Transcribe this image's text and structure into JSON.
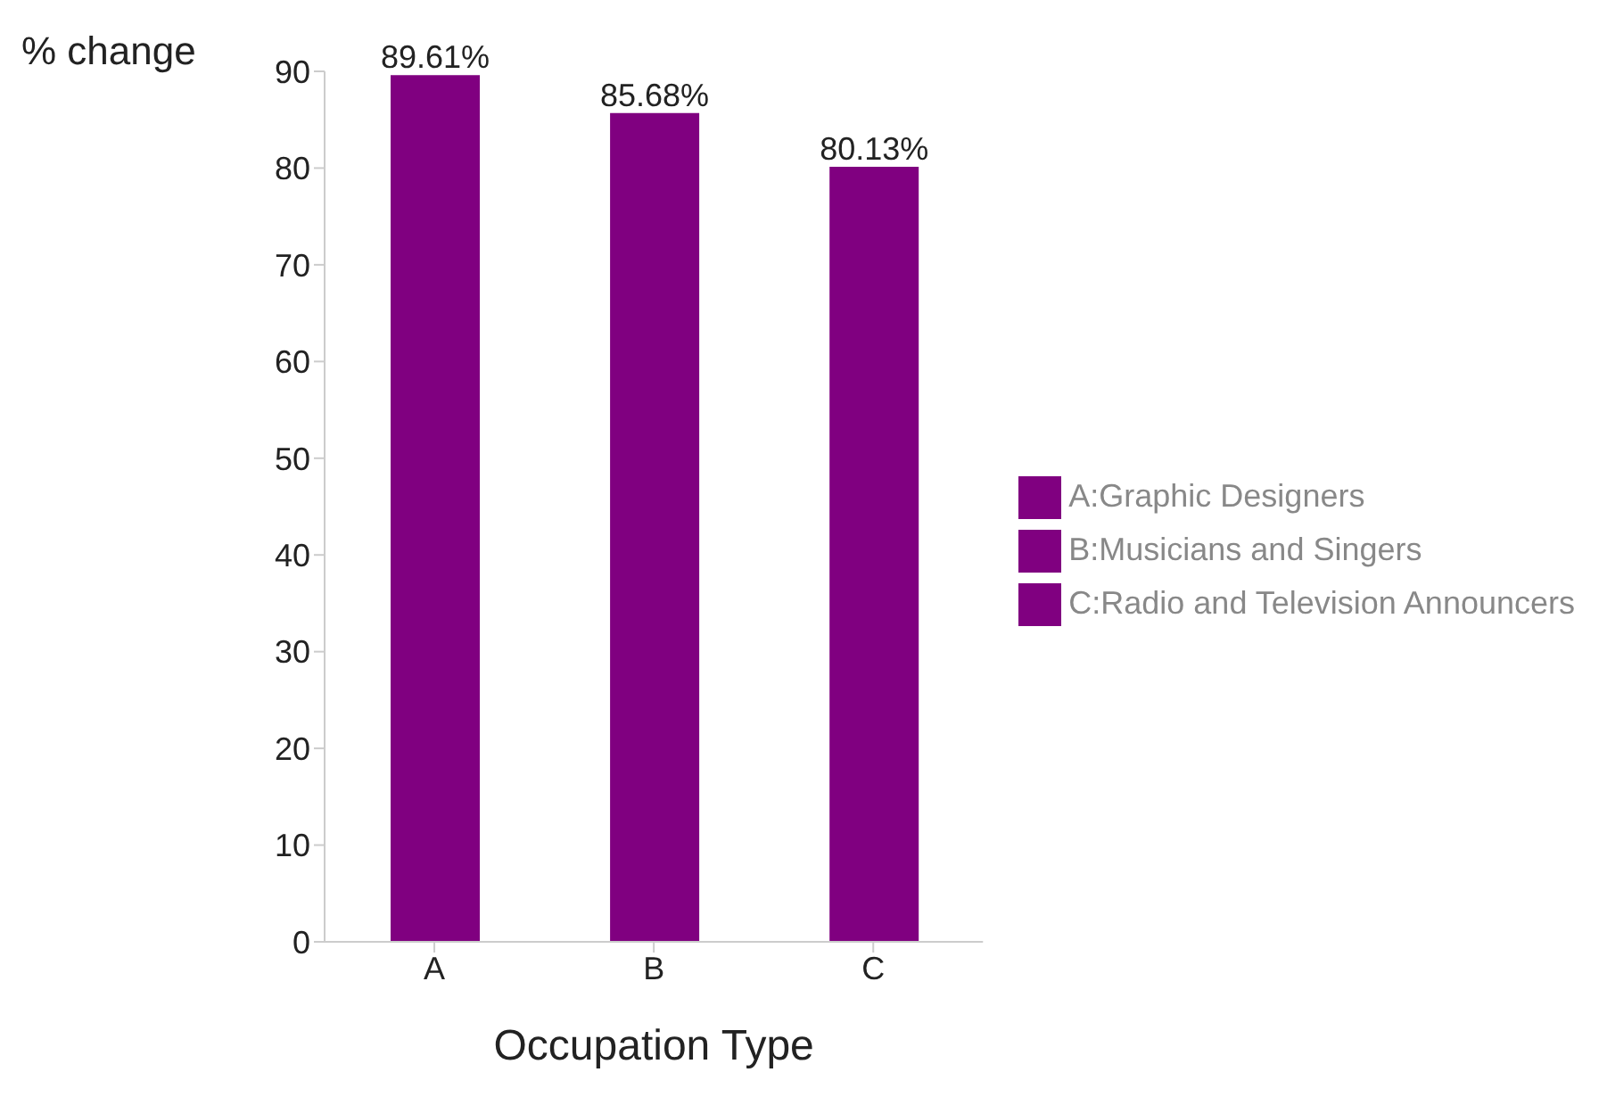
{
  "chart_data": {
    "type": "bar",
    "xlabel": "Occupation Type",
    "ylabel": "% change",
    "categories": [
      "A",
      "B",
      "C"
    ],
    "series": [
      {
        "name": "A:Graphic Designers",
        "color": "#800080",
        "values": [
          89.61,
          null,
          null
        ],
        "value_labels": [
          "89.61%",
          null,
          null
        ]
      },
      {
        "name": "B:Musicians and Singers",
        "color": "#800080",
        "values": [
          null,
          85.68,
          null
        ],
        "value_labels": [
          null,
          "85.68%",
          null
        ]
      },
      {
        "name": "C:Radio and Television Announcers",
        "color": "#800080",
        "values": [
          null,
          null,
          80.13
        ],
        "value_labels": [
          null,
          null,
          "80.13%"
        ]
      }
    ],
    "stacked": true,
    "ylim": [
      0,
      90
    ],
    "yticks": [
      0,
      10,
      20,
      30,
      40,
      50,
      60,
      70,
      80,
      90
    ],
    "grid": false,
    "legend": "right"
  }
}
